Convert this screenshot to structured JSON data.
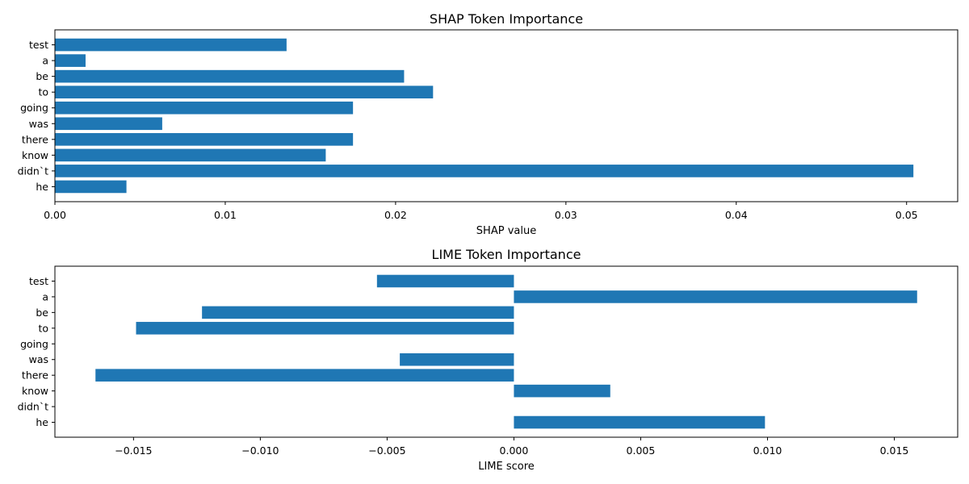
{
  "chart_data": [
    {
      "type": "bar",
      "orientation": "horizontal",
      "title": "SHAP Token Importance",
      "xlabel": "SHAP value",
      "ylabel": "",
      "categories": [
        "he",
        "didn`t",
        "know",
        "there",
        "was",
        "going",
        "to",
        "be",
        "a",
        "test"
      ],
      "values": [
        0.0042,
        0.0504,
        0.0159,
        0.0175,
        0.0063,
        0.0175,
        0.0222,
        0.0205,
        0.0018,
        0.0136
      ],
      "xlim": [
        0,
        0.053
      ],
      "xticks": [
        0,
        0.01,
        0.02,
        0.03,
        0.04,
        0.05
      ],
      "xtick_labels": [
        "0.00",
        "0.01",
        "0.02",
        "0.03",
        "0.04",
        "0.05"
      ],
      "bar_color": "#1f77b4",
      "grid": false
    },
    {
      "type": "bar",
      "orientation": "horizontal",
      "title": "LIME Token Importance",
      "xlabel": "LIME score",
      "ylabel": "",
      "categories": [
        "he",
        "didn`t",
        "know",
        "there",
        "was",
        "going",
        "to",
        "be",
        "a",
        "test"
      ],
      "values": [
        0.0099,
        0.0,
        0.0038,
        -0.0165,
        -0.0045,
        0.0,
        -0.0149,
        -0.0123,
        0.0159,
        -0.0054
      ],
      "xlim": [
        -0.0181,
        0.0175
      ],
      "xticks": [
        -0.015,
        -0.01,
        -0.005,
        0.0,
        0.005,
        0.01,
        0.015
      ],
      "xtick_labels": [
        "−0.015",
        "−0.010",
        "−0.005",
        "0.000",
        "0.005",
        "0.010",
        "0.015"
      ],
      "bar_color": "#1f77b4",
      "grid": false
    }
  ]
}
